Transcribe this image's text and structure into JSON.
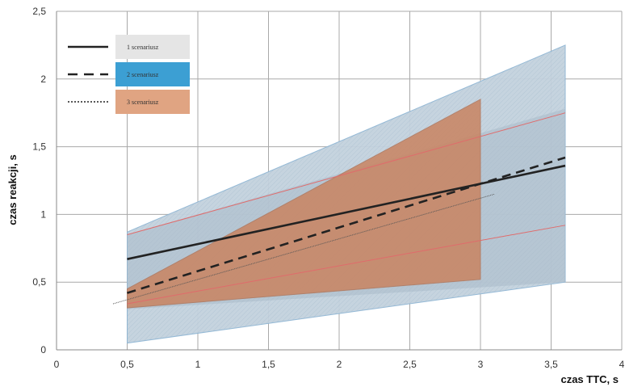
{
  "chart_data": {
    "type": "line",
    "xlabel": "czas TTC, s",
    "ylabel": "czas reakcji, s",
    "xlim": [
      0,
      4
    ],
    "ylim": [
      0,
      2.5
    ],
    "xticks": [
      "0",
      "0,5",
      "1",
      "1,5",
      "2",
      "2,5",
      "3",
      "3,5",
      "4"
    ],
    "yticks": [
      "0",
      "0,5",
      "1",
      "1,5",
      "2",
      "2,5"
    ],
    "grid": true,
    "legend_position": "top-left",
    "series": [
      {
        "name": "1 scenariusz",
        "line_style": "solid",
        "band_color": "#e5e5e5",
        "line": {
          "x": [
            0.5,
            3.6
          ],
          "y": [
            0.67,
            1.36
          ]
        },
        "band_outer": {
          "x": [
            0.5,
            3.6
          ],
          "upper": [
            0.87,
            2.25
          ],
          "lower": [
            0.05,
            0.5
          ]
        },
        "band_inner": {
          "x": [
            0.5,
            3.6
          ],
          "upper": [
            0.85,
            1.78
          ],
          "lower": [
            0.3,
            0.5
          ]
        }
      },
      {
        "name": "2 scenariusz",
        "line_style": "dashed",
        "band_color": "#3c9fd3",
        "line": {
          "x": [
            0.5,
            3.6
          ],
          "y": [
            0.42,
            1.42
          ]
        },
        "conf_lines": {
          "x": [
            0.5,
            3.6
          ],
          "upper": [
            0.85,
            1.75
          ],
          "lower": [
            0.34,
            0.92
          ]
        }
      },
      {
        "name": "3 scenariusz",
        "line_style": "dotted",
        "band_color": "#e0a482",
        "line": {
          "x": [
            0.4,
            3.1
          ],
          "y": [
            0.34,
            1.15
          ]
        },
        "band": {
          "x": [
            0.5,
            3.0
          ],
          "upper": [
            0.45,
            1.85
          ],
          "lower": [
            0.31,
            0.52
          ]
        }
      }
    ]
  }
}
